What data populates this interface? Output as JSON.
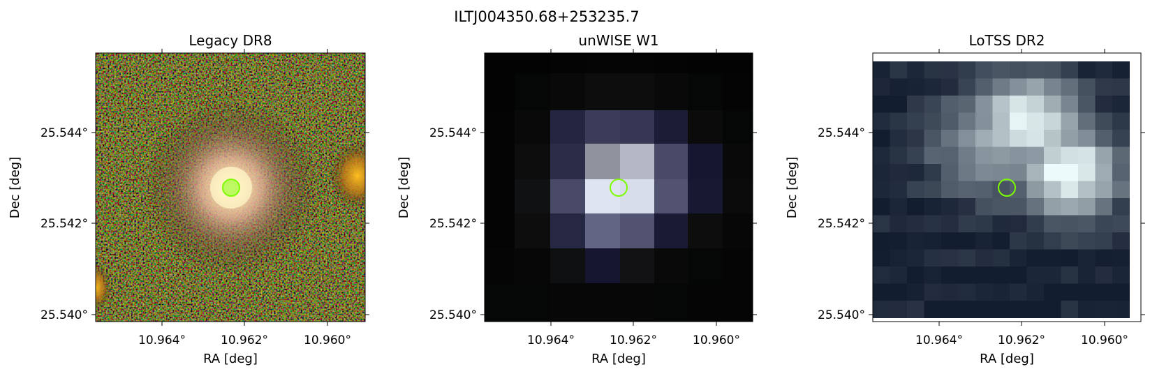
{
  "figure": {
    "suptitle": "ILTJ004350.68+253235.7"
  },
  "colors": {
    "marker": "#7CFC00",
    "background": "#ffffff",
    "axes": "#000000"
  },
  "panels": [
    {
      "title": "Legacy DR8",
      "xlabel": "RA [deg]",
      "ylabel": "Dec [deg]",
      "xticks": [
        "10.964°",
        "10.962°",
        "10.960°"
      ],
      "yticks": [
        "25.544°",
        "25.542°",
        "25.540°"
      ]
    },
    {
      "title": "unWISE W1",
      "xlabel": "RA [deg]",
      "ylabel": "Dec [deg]",
      "xticks": [
        "10.964°",
        "10.962°",
        "10.960°"
      ],
      "yticks": [
        "25.544°",
        "25.542°",
        "25.540°"
      ]
    },
    {
      "title": "LoTSS DR2",
      "xlabel": "RA [deg]",
      "ylabel": "Dec [deg]",
      "xticks": [
        "10.964°",
        "10.962°",
        "10.960°"
      ],
      "yticks": [
        "25.544°",
        "25.542°",
        "25.540°"
      ]
    }
  ]
}
